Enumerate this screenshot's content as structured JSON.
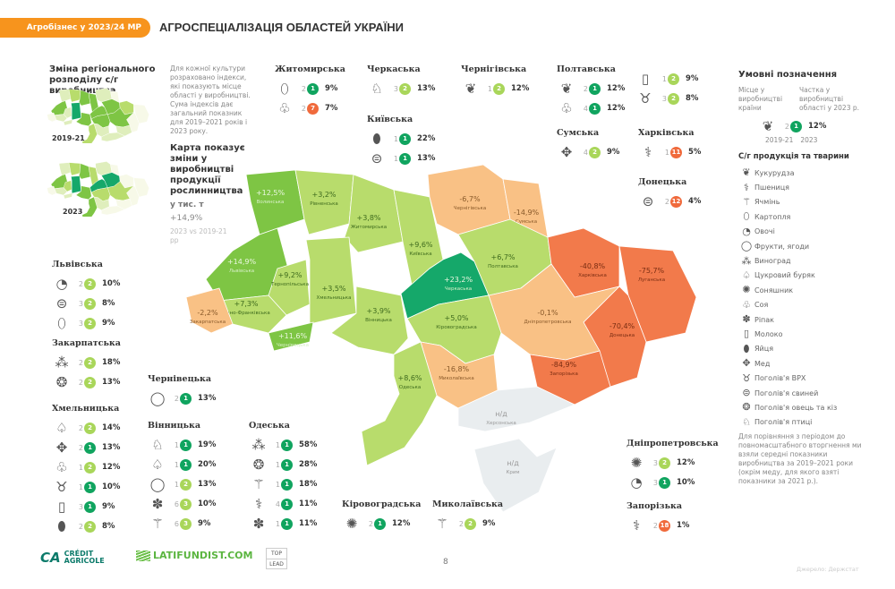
{
  "header": {
    "section": "Агробізнес у 2023/24 МР",
    "title": "АГРОСПЕЦІАЛІЗАЦІЯ ОБЛАСТЕЙ УКРАЇНИ"
  },
  "intro": {
    "heading": "Зміна регіонального розподілу с/г виробництва",
    "map1_label": "2019-21",
    "map2_label": "2023",
    "text": "Для кожної культури розраховано індекси, які показують місце області у виробництві. Сума індексів дає загальний показник для 2019–2021 років і 2023 року.",
    "map_heading": "Карта показує зміни у виробництві продукції рослинництва",
    "map_unit": "у тис. т",
    "total_change": "+14,9%",
    "total_note": "2023 vs 2019-21 рр"
  },
  "colors": {
    "dark-green": "#15a86a",
    "medium-green": "#7ec544",
    "light-green": "#b8dc6c",
    "light-orange": "#f9c185",
    "orange": "#f27a4b",
    "no-data": "#e9edef",
    "badge-dark": "#10a45f",
    "badge-light": "#a9d65a",
    "badge-red": "#f06a3c",
    "accent": "#f7941d"
  },
  "map": {
    "regions": [
      {
        "name": "Волинська",
        "change": "+12,5%",
        "tier": "medium-green"
      },
      {
        "name": "Рівненська",
        "change": "+3,2%",
        "tier": "light-green"
      },
      {
        "name": "Житомирська",
        "change": "+3,8%",
        "tier": "light-green"
      },
      {
        "name": "Київська",
        "change": "+9,6%",
        "tier": "light-green"
      },
      {
        "name": "Чернігівська",
        "change": "-6,7%",
        "tier": "light-orange"
      },
      {
        "name": "Сумська",
        "change": "-14,9%",
        "tier": "light-orange"
      },
      {
        "name": "Львівська",
        "change": "+14,9%",
        "tier": "medium-green"
      },
      {
        "name": "Тернопільська",
        "change": "+9,2%",
        "tier": "light-green"
      },
      {
        "name": "Хмельницька",
        "change": "+3,5%",
        "tier": "light-green"
      },
      {
        "name": "Вінницька",
        "change": "+3,9%",
        "tier": "light-green"
      },
      {
        "name": "Івано-Франківська",
        "change": "+7,3%",
        "tier": "light-green"
      },
      {
        "name": "Закарпатська",
        "change": "-2,2%",
        "tier": "light-orange"
      },
      {
        "name": "Чернівецька",
        "change": "+11,6%",
        "tier": "medium-green"
      },
      {
        "name": "Черкаська",
        "change": "+23,2%",
        "tier": "dark-green"
      },
      {
        "name": "Полтавська",
        "change": "+6,7%",
        "tier": "light-green"
      },
      {
        "name": "Харківська",
        "change": "-40,8%",
        "tier": "orange"
      },
      {
        "name": "Луганська",
        "change": "-75,7%",
        "tier": "orange"
      },
      {
        "name": "Донецька",
        "change": "-70,4%",
        "tier": "orange"
      },
      {
        "name": "Дніпропетровська",
        "change": "-0,1%",
        "tier": "light-orange"
      },
      {
        "name": "Кіровоградська",
        "change": "+5,0%",
        "tier": "light-green"
      },
      {
        "name": "Запорізька",
        "change": "-84,9%",
        "tier": "orange"
      },
      {
        "name": "Миколаївська",
        "change": "-16,8%",
        "tier": "light-orange"
      },
      {
        "name": "Одеська",
        "change": "+8,6%",
        "tier": "light-green"
      },
      {
        "name": "Херсонська",
        "change": "н/д",
        "tier": "no-data"
      },
      {
        "name": "Крим",
        "change": "н/д",
        "tier": "no-data"
      }
    ]
  },
  "cards": [
    {
      "id": "zhytomyr",
      "name": "Житомирська",
      "items": [
        {
          "icon": "potato",
          "prev": "2",
          "now": "1",
          "c": "dark"
        },
        {
          "icon": "soy",
          "prev": "2",
          "now": "7",
          "c": "red"
        }
      ],
      "shares": [
        "9%",
        "7%"
      ]
    },
    {
      "id": "cherkasy",
      "name": "Черкаська",
      "items": [
        {
          "icon": "poultry",
          "prev": "3",
          "now": "2",
          "c": "light"
        }
      ],
      "shares": [
        "13%"
      ]
    },
    {
      "id": "kyiv",
      "name": "Київська",
      "items": [
        {
          "icon": "eggs",
          "prev": "1",
          "now": "1",
          "c": "dark"
        },
        {
          "icon": "pigs",
          "prev": "1",
          "now": "1",
          "c": "dark"
        }
      ],
      "shares": [
        "22%",
        "13%"
      ]
    },
    {
      "id": "chernihiv",
      "name": "Чернігівська",
      "items": [
        {
          "icon": "corn",
          "prev": "1",
          "now": "2",
          "c": "light"
        }
      ],
      "shares": [
        "12%"
      ]
    },
    {
      "id": "poltava",
      "name": "Полтавська",
      "items": [
        {
          "icon": "corn",
          "prev": "2",
          "now": "1",
          "c": "dark"
        },
        {
          "icon": "soy",
          "prev": "4",
          "now": "1",
          "c": "dark"
        }
      ],
      "shares": [
        "12%",
        "12%"
      ]
    },
    {
      "id": "poltava2",
      "name": "",
      "items": [
        {
          "icon": "milk",
          "prev": "1",
          "now": "2",
          "c": "light"
        },
        {
          "icon": "cattle",
          "prev": "3",
          "now": "2",
          "c": "light"
        }
      ],
      "shares": [
        "9%",
        "8%"
      ]
    },
    {
      "id": "sumy",
      "name": "Сумська",
      "items": [
        {
          "icon": "honey",
          "prev": "4",
          "now": "2",
          "c": "light"
        }
      ],
      "shares": [
        "9%"
      ]
    },
    {
      "id": "kharkiv",
      "name": "Харківська",
      "items": [
        {
          "icon": "wheat",
          "prev": "1",
          "now": "11",
          "c": "red"
        }
      ],
      "shares": [
        "5%"
      ]
    },
    {
      "id": "donetsk",
      "name": "Донецька",
      "items": [
        {
          "icon": "pigs",
          "prev": "2",
          "now": "12",
          "c": "red"
        }
      ],
      "shares": [
        "4%"
      ]
    },
    {
      "id": "lviv",
      "name": "Львівська",
      "items": [
        {
          "icon": "vegetables",
          "prev": "2",
          "now": "2",
          "c": "light"
        },
        {
          "icon": "pigs",
          "prev": "3",
          "now": "2",
          "c": "light"
        },
        {
          "icon": "potato",
          "prev": "3",
          "now": "2",
          "c": "light"
        }
      ],
      "shares": [
        "10%",
        "8%",
        "9%"
      ]
    },
    {
      "id": "zakarpattia",
      "name": "Закарпатська",
      "items": [
        {
          "icon": "grapes",
          "prev": "2",
          "now": "2",
          "c": "light"
        },
        {
          "icon": "sheep",
          "prev": "2",
          "now": "2",
          "c": "light"
        }
      ],
      "shares": [
        "18%",
        "13%"
      ]
    },
    {
      "id": "khmelnytskyi",
      "name": "Хмельницька",
      "items": [
        {
          "icon": "sugar-beet",
          "prev": "2",
          "now": "2",
          "c": "light"
        },
        {
          "icon": "honey",
          "prev": "2",
          "now": "1",
          "c": "dark"
        },
        {
          "icon": "soy",
          "prev": "1",
          "now": "2",
          "c": "light"
        },
        {
          "icon": "cattle",
          "prev": "1",
          "now": "1",
          "c": "dark"
        },
        {
          "icon": "milk",
          "prev": "3",
          "now": "1",
          "c": "dark"
        },
        {
          "icon": "eggs",
          "prev": "2",
          "now": "2",
          "c": "light"
        }
      ],
      "shares": [
        "14%",
        "13%",
        "12%",
        "10%",
        "9%",
        "8%"
      ]
    },
    {
      "id": "chernivtsi",
      "name": "Чернівецька",
      "items": [
        {
          "icon": "fruit",
          "prev": "2",
          "now": "1",
          "c": "dark"
        }
      ],
      "shares": [
        "13%"
      ]
    },
    {
      "id": "vinnytsia",
      "name": "Вінницька",
      "items": [
        {
          "icon": "poultry",
          "prev": "1",
          "now": "1",
          "c": "dark"
        },
        {
          "icon": "sugar-beet",
          "prev": "1",
          "now": "1",
          "c": "dark"
        },
        {
          "icon": "fruit",
          "prev": "1",
          "now": "2",
          "c": "light"
        },
        {
          "icon": "rapeseed",
          "prev": "6",
          "now": "3",
          "c": "light"
        },
        {
          "icon": "barley",
          "prev": "6",
          "now": "3",
          "c": "light"
        }
      ],
      "shares": [
        "19%",
        "20%",
        "13%",
        "10%",
        "9%"
      ]
    },
    {
      "id": "odesa",
      "name": "Одеська",
      "items": [
        {
          "icon": "grapes",
          "prev": "1",
          "now": "1",
          "c": "dark"
        },
        {
          "icon": "sheep",
          "prev": "1",
          "now": "1",
          "c": "dark"
        },
        {
          "icon": "barley",
          "prev": "1",
          "now": "1",
          "c": "dark"
        },
        {
          "icon": "wheat",
          "prev": "4",
          "now": "1",
          "c": "dark"
        },
        {
          "icon": "rapeseed",
          "prev": "1",
          "now": "1",
          "c": "dark"
        }
      ],
      "shares": [
        "58%",
        "28%",
        "18%",
        "11%",
        "11%"
      ]
    },
    {
      "id": "kirovohrad",
      "name": "Кіровоградська",
      "items": [
        {
          "icon": "sunflower",
          "prev": "2",
          "now": "1",
          "c": "dark"
        }
      ],
      "shares": [
        "12%"
      ]
    },
    {
      "id": "mykolaiv",
      "name": "Миколаївська",
      "items": [
        {
          "icon": "barley",
          "prev": "2",
          "now": "2",
          "c": "light"
        }
      ],
      "shares": [
        "9%"
      ]
    },
    {
      "id": "dnipro",
      "name": "Дніпропетровська",
      "items": [
        {
          "icon": "sunflower",
          "prev": "3",
          "now": "2",
          "c": "light"
        },
        {
          "icon": "vegetables",
          "prev": "3",
          "now": "1",
          "c": "dark"
        }
      ],
      "shares": [
        "12%",
        "10%"
      ]
    },
    {
      "id": "zaporizhzhia",
      "name": "Запорізька",
      "items": [
        {
          "icon": "wheat",
          "prev": "2",
          "now": "18",
          "c": "red"
        }
      ],
      "shares": [
        "1%"
      ]
    }
  ],
  "legend": {
    "title": "Умовні позначення",
    "place_label": "Місце у виробництві країни",
    "share_label": "Частка у виробництві області у 2023 р.",
    "example": {
      "icon": "corn",
      "prev": "2",
      "now": "1",
      "share": "12%",
      "year1": "2019-21",
      "year2": "2023"
    },
    "products_title": "С/г продукція та тварини",
    "items": [
      {
        "icon": "corn",
        "label": "Кукурудза"
      },
      {
        "icon": "wheat",
        "label": "Пшениця"
      },
      {
        "icon": "barley",
        "label": "Ячмінь"
      },
      {
        "icon": "potato",
        "label": "Картопля"
      },
      {
        "icon": "vegetables",
        "label": "Овочі"
      },
      {
        "icon": "fruit",
        "label": "Фрукти, ягоди"
      },
      {
        "icon": "grapes",
        "label": "Виноград"
      },
      {
        "icon": "sugar-beet",
        "label": "Цукровий буряк"
      },
      {
        "icon": "sunflower",
        "label": "Соняшник"
      },
      {
        "icon": "soy",
        "label": "Соя"
      },
      {
        "icon": "rapeseed",
        "label": "Ріпак"
      },
      {
        "icon": "milk",
        "label": "Молоко"
      },
      {
        "icon": "eggs",
        "label": "Яйця"
      },
      {
        "icon": "honey",
        "label": "Мед"
      },
      {
        "icon": "cattle",
        "label": "Поголів'я ВРХ"
      },
      {
        "icon": "pigs",
        "label": "Поголів'я свиней"
      },
      {
        "icon": "sheep",
        "label": "Поголів'я овець та кіз"
      },
      {
        "icon": "poultry",
        "label": "Поголів'я птиці"
      }
    ],
    "note": "Для порівняння з періодом до повномасштабного вторгнення ми взяли середні показники виробництва за 2019–2021 роки (окрім меду, для якого взяті показники за 2021 р.)."
  },
  "footer": {
    "logo1": "CRÉDIT AGRICOLE",
    "logo2": "LATIFUNDIST.COM",
    "logo3_top": "TOP",
    "logo3_bottom": "LEAD",
    "page": "8",
    "source": "Джерело: Держстат"
  }
}
